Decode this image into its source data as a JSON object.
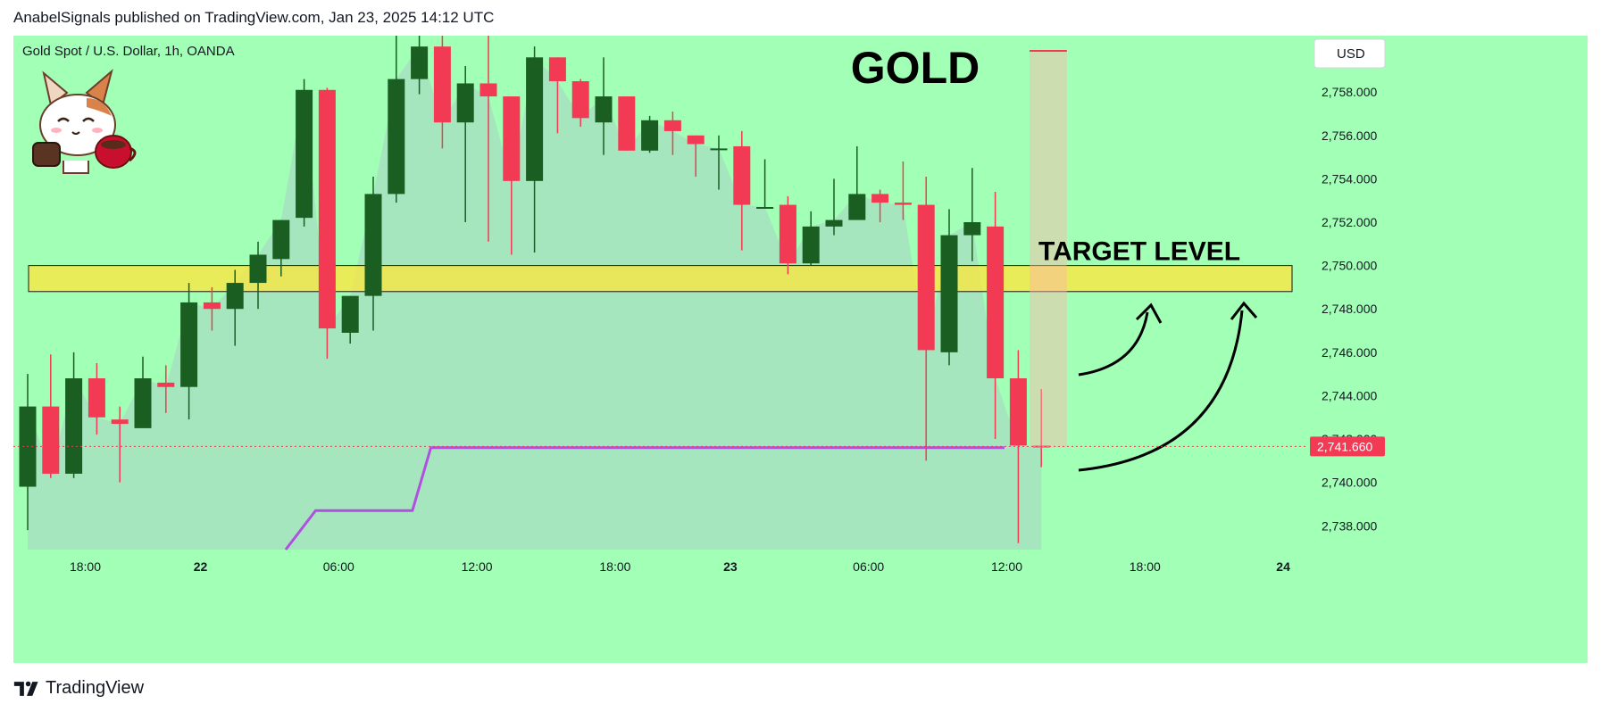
{
  "header": {
    "published_text": "AnabelSignals published on TradingView.com, Jan 23, 2025 14:12 UTC"
  },
  "chart": {
    "symbol_line": "Gold Spot / U.S. Dollar, 1h, OANDA",
    "title": "GOLD",
    "currency_button": "USD",
    "target_label": "TARGET LEVEL",
    "last_price_label": "2,741.660",
    "colors": {
      "background": "#a2ffb6",
      "up_candle": "#1a5e22",
      "down_candle": "#f23a54",
      "area_fill": "#a6e2c0",
      "target_zone": "#ffe53a",
      "purple_line": "#b04fe0",
      "last_price": "#f23a54"
    },
    "icons": [
      "cartoon-cat-with-coffee-icon",
      "tradingview-logo-icon",
      "curved-arrow-icon"
    ]
  },
  "footer": {
    "brand": "TradingView"
  },
  "chart_data": {
    "type": "candlestick",
    "title": "GOLD",
    "subtitle": "Gold Spot / U.S. Dollar, 1h, OANDA",
    "xlabel": "",
    "ylabel": "",
    "y_range": [
      2736.9,
      2760.6
    ],
    "y_ticks": [
      2738,
      2740,
      2742,
      2744,
      2746,
      2748,
      2750,
      2752,
      2754,
      2756,
      2758
    ],
    "y_tick_labels": [
      "2,738.000",
      "2,740.000",
      "2,742.000",
      "2,744.000",
      "2,746.000",
      "2,748.000",
      "2,750.000",
      "2,752.000",
      "2,754.000",
      "2,756.000",
      "2,758.000"
    ],
    "x_tick_labels": [
      {
        "label": "18:00",
        "bar": 2.5
      },
      {
        "label": "22",
        "bar": 7.5
      },
      {
        "label": "06:00",
        "bar": 13.5
      },
      {
        "label": "12:00",
        "bar": 19.5
      },
      {
        "label": "18:00",
        "bar": 25.5
      },
      {
        "label": "23",
        "bar": 30.5
      },
      {
        "label": "06:00",
        "bar": 36.5
      },
      {
        "label": "12:00",
        "bar": 42.5
      },
      {
        "label": "18:00",
        "bar": 48.5
      },
      {
        "label": "24",
        "bar": 54.5
      }
    ],
    "candles": [
      {
        "o": 2739.8,
        "h": 2745.0,
        "l": 2737.8,
        "c": 2743.5
      },
      {
        "o": 2743.5,
        "h": 2745.9,
        "l": 2740.2,
        "c": 2740.4
      },
      {
        "o": 2740.4,
        "h": 2746.0,
        "l": 2740.2,
        "c": 2744.8
      },
      {
        "o": 2744.8,
        "h": 2745.5,
        "l": 2742.2,
        "c": 2743.0
      },
      {
        "o": 2742.9,
        "h": 2743.5,
        "l": 2740.0,
        "c": 2742.7
      },
      {
        "o": 2742.5,
        "h": 2745.8,
        "l": 2742.5,
        "c": 2744.8
      },
      {
        "o": 2744.6,
        "h": 2745.4,
        "l": 2743.2,
        "c": 2744.4
      },
      {
        "o": 2744.4,
        "h": 2749.2,
        "l": 2742.9,
        "c": 2748.3
      },
      {
        "o": 2748.3,
        "h": 2749.0,
        "l": 2747.0,
        "c": 2748.0
      },
      {
        "o": 2748.0,
        "h": 2749.8,
        "l": 2746.3,
        "c": 2749.2
      },
      {
        "o": 2749.2,
        "h": 2751.1,
        "l": 2748.0,
        "c": 2750.5
      },
      {
        "o": 2750.3,
        "h": 2752.1,
        "l": 2749.5,
        "c": 2752.1
      },
      {
        "o": 2752.2,
        "h": 2758.6,
        "l": 2751.8,
        "c": 2758.1
      },
      {
        "o": 2758.1,
        "h": 2758.2,
        "l": 2745.7,
        "c": 2747.1
      },
      {
        "o": 2746.9,
        "h": 2748.6,
        "l": 2746.4,
        "c": 2748.6
      },
      {
        "o": 2748.6,
        "h": 2754.1,
        "l": 2747.0,
        "c": 2753.3
      },
      {
        "o": 2753.3,
        "h": 2760.6,
        "l": 2752.9,
        "c": 2758.6
      },
      {
        "o": 2758.6,
        "h": 2760.6,
        "l": 2757.9,
        "c": 2760.1
      },
      {
        "o": 2760.1,
        "h": 2760.6,
        "l": 2755.4,
        "c": 2756.6
      },
      {
        "o": 2756.6,
        "h": 2759.2,
        "l": 2752.0,
        "c": 2758.4
      },
      {
        "o": 2758.4,
        "h": 2760.6,
        "l": 2751.1,
        "c": 2757.8
      },
      {
        "o": 2757.8,
        "h": 2757.8,
        "l": 2750.5,
        "c": 2753.9
      },
      {
        "o": 2753.9,
        "h": 2760.1,
        "l": 2750.6,
        "c": 2759.6
      },
      {
        "o": 2759.6,
        "h": 2759.6,
        "l": 2756.1,
        "c": 2758.5
      },
      {
        "o": 2758.5,
        "h": 2758.6,
        "l": 2756.4,
        "c": 2756.8
      },
      {
        "o": 2756.6,
        "h": 2759.6,
        "l": 2755.1,
        "c": 2757.8
      },
      {
        "o": 2757.8,
        "h": 2757.8,
        "l": 2755.3,
        "c": 2755.3
      },
      {
        "o": 2755.3,
        "h": 2756.9,
        "l": 2755.2,
        "c": 2756.7
      },
      {
        "o": 2756.7,
        "h": 2757.1,
        "l": 2755.1,
        "c": 2756.2
      },
      {
        "o": 2756.0,
        "h": 2756.0,
        "l": 2754.1,
        "c": 2755.6
      },
      {
        "o": 2755.4,
        "h": 2756.0,
        "l": 2753.5,
        "c": 2755.4
      },
      {
        "o": 2755.5,
        "h": 2756.2,
        "l": 2750.7,
        "c": 2752.8
      },
      {
        "o": 2752.7,
        "h": 2754.9,
        "l": 2752.7,
        "c": 2752.7
      },
      {
        "o": 2752.8,
        "h": 2753.2,
        "l": 2749.6,
        "c": 2750.1
      },
      {
        "o": 2750.1,
        "h": 2752.5,
        "l": 2750.0,
        "c": 2751.8
      },
      {
        "o": 2751.8,
        "h": 2754.0,
        "l": 2751.4,
        "c": 2752.1
      },
      {
        "o": 2752.1,
        "h": 2755.5,
        "l": 2752.1,
        "c": 2753.3
      },
      {
        "o": 2753.3,
        "h": 2753.5,
        "l": 2752.0,
        "c": 2752.9
      },
      {
        "o": 2752.9,
        "h": 2754.8,
        "l": 2752.1,
        "c": 2752.8
      },
      {
        "o": 2752.8,
        "h": 2754.1,
        "l": 2741.0,
        "c": 2746.1
      },
      {
        "o": 2746.0,
        "h": 2752.6,
        "l": 2745.4,
        "c": 2751.4
      },
      {
        "o": 2751.4,
        "h": 2754.5,
        "l": 2750.2,
        "c": 2752.0
      },
      {
        "o": 2751.8,
        "h": 2753.4,
        "l": 2742.0,
        "c": 2744.8
      },
      {
        "o": 2744.8,
        "h": 2746.1,
        "l": 2737.2,
        "c": 2741.7
      },
      {
        "o": 2741.7,
        "h": 2744.3,
        "l": 2740.7,
        "c": 2741.6
      }
    ],
    "area_under_price": true,
    "target_zone": {
      "low": 2748.8,
      "high": 2750.0,
      "label": "TARGET LEVEL"
    },
    "purple_line": [
      {
        "bar": 11.2,
        "y": 2736.9
      },
      {
        "bar": 12.5,
        "y": 2738.7
      },
      {
        "bar": 16.7,
        "y": 2738.7
      },
      {
        "bar": 17.5,
        "y": 2741.6
      },
      {
        "bar": 42.4,
        "y": 2741.6
      }
    ],
    "target_bar": {
      "from_bar": 43.8,
      "to_bar": 44.8,
      "low": 2741.6,
      "high": 2759.9
    },
    "last_price": 2741.66
  }
}
